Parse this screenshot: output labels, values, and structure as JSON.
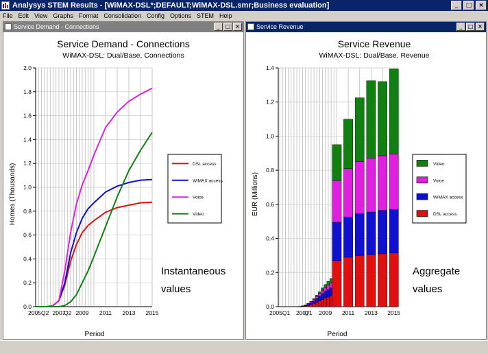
{
  "window": {
    "title": "Analysys STEM Results - [WiMAX-DSL*;DEFAULT;WiMAX-DSL.smr;Business evaluation]",
    "buttons": [
      "_",
      "□",
      "×"
    ]
  },
  "menu": [
    "File",
    "Edit",
    "View",
    "Graphs",
    "Format",
    "Consolidation",
    "Config",
    "Options",
    "STEM",
    "Help"
  ],
  "left_panel": {
    "window_title": "Service Demand - Connections",
    "annotation": [
      "Instantaneous",
      "values"
    ]
  },
  "right_panel": {
    "window_title": "Service Revenue",
    "annotation": [
      "Aggregate",
      "values"
    ]
  },
  "colors": {
    "active_title": "#0a246a",
    "inactive_title": "#808080",
    "dsl": "#e01010",
    "wimax": "#1010d0",
    "voice": "#e020e0",
    "video": "#108010"
  },
  "chart_data": [
    {
      "type": "line",
      "title": "Service Demand - Connections",
      "subtitle": "WiMAX-DSL:  Dual/Base, Connections",
      "xlabel": "Period",
      "ylabel": "Homes  (Thousands)",
      "xlim": [
        2005.0,
        2015.0
      ],
      "ylim": [
        0,
        2.0
      ],
      "yticks": [
        "0.0",
        "0.2",
        "0.4",
        "0.6",
        "0.8",
        "1.0",
        "1.2",
        "1.4",
        "1.6",
        "1.8",
        "2.0"
      ],
      "xticklabels": [
        {
          "label": "2005Q2",
          "x": 2005.25
        },
        {
          "label": "2007",
          "x": 2007.0
        },
        {
          "label": "Q2",
          "x": 2007.75
        },
        {
          "label": "2009",
          "x": 2009.0
        },
        {
          "label": "2011",
          "x": 2011.0
        },
        {
          "label": "2013",
          "x": 2013.0
        },
        {
          "label": "2015",
          "x": 2015.0
        }
      ],
      "grid": true,
      "legend_position": "right",
      "series": [
        {
          "name": "DSL access",
          "x": [
            2005.0,
            2006.0,
            2006.5,
            2007.0,
            2007.5,
            2008.0,
            2008.5,
            2009.0,
            2009.5,
            2010.0,
            2011.0,
            2012.0,
            2013.0,
            2014.0,
            2015.0
          ],
          "y": [
            0,
            0,
            0.01,
            0.05,
            0.18,
            0.38,
            0.52,
            0.62,
            0.68,
            0.72,
            0.79,
            0.83,
            0.85,
            0.87,
            0.875
          ]
        },
        {
          "name": "WiMAX access",
          "x": [
            2005.0,
            2006.0,
            2006.5,
            2007.0,
            2007.5,
            2008.0,
            2008.5,
            2009.0,
            2009.5,
            2010.0,
            2011.0,
            2012.0,
            2013.0,
            2014.0,
            2015.0
          ],
          "y": [
            0,
            0,
            0.01,
            0.05,
            0.2,
            0.45,
            0.62,
            0.74,
            0.82,
            0.87,
            0.96,
            1.01,
            1.04,
            1.06,
            1.065
          ]
        },
        {
          "name": "Voice",
          "x": [
            2005.0,
            2006.0,
            2006.5,
            2007.0,
            2007.5,
            2008.0,
            2008.5,
            2009.0,
            2009.5,
            2010.0,
            2011.0,
            2012.0,
            2013.0,
            2014.0,
            2015.0
          ],
          "y": [
            0,
            0,
            0.01,
            0.05,
            0.3,
            0.62,
            0.86,
            1.02,
            1.14,
            1.27,
            1.5,
            1.63,
            1.72,
            1.78,
            1.83
          ]
        },
        {
          "name": "Video",
          "x": [
            2005.0,
            2006.0,
            2006.5,
            2007.0,
            2007.5,
            2008.0,
            2008.5,
            2009.0,
            2009.5,
            2010.0,
            2011.0,
            2012.0,
            2013.0,
            2014.0,
            2015.0
          ],
          "y": [
            0,
            0,
            0,
            0,
            0.01,
            0.04,
            0.1,
            0.2,
            0.3,
            0.42,
            0.67,
            0.92,
            1.14,
            1.31,
            1.46
          ]
        }
      ]
    },
    {
      "type": "bar",
      "stacked": true,
      "title": "Service Revenue",
      "subtitle": "WiMAX-DSL:  Dual/Base, Revenue",
      "xlabel": "Period",
      "ylabel": "EUR  (Millions)",
      "xlim": [
        2004.875,
        2015.375
      ],
      "ylim": [
        0,
        1.4
      ],
      "yticks": [
        "0.0",
        "0.2",
        "0.4",
        "0.6",
        "0.8",
        "1.0",
        "1.2",
        "1.4"
      ],
      "xticklabels": [
        {
          "label": "2005Q1",
          "x": 2005.0
        },
        {
          "label": "2007",
          "x": 2007.0
        },
        {
          "label": "Q1",
          "x": 2007.5
        },
        {
          "label": "2009",
          "x": 2009.0
        },
        {
          "label": "2011",
          "x": 2011.0
        },
        {
          "label": "2013",
          "x": 2013.0
        },
        {
          "label": "2015",
          "x": 2015.0
        }
      ],
      "grid": true,
      "legend_position": "right",
      "legend_order": [
        "Video",
        "Voice",
        "WiMAX access",
        "DSL access"
      ],
      "categories": [
        "2005Q1",
        "2005Q2",
        "2005Q3",
        "2005Q4",
        "2006Q1",
        "2006Q2",
        "2006Q3",
        "2006Q4",
        "2007Q1",
        "2007Q2",
        "2007Q3",
        "2007Q4",
        "2008Q1",
        "2008Q2",
        "2008Q3",
        "2008Q4",
        "2009Q1",
        "2009Q2",
        "2009Q3",
        "2009Q4",
        "2010",
        "2011",
        "2012",
        "2013",
        "2014",
        "2015"
      ],
      "x": [
        2005.0,
        2005.25,
        2005.5,
        2005.75,
        2006.0,
        2006.25,
        2006.5,
        2006.75,
        2007.0,
        2007.25,
        2007.5,
        2007.75,
        2008.0,
        2008.25,
        2008.5,
        2008.75,
        2009.0,
        2009.25,
        2009.5,
        2009.75,
        2010.0,
        2011.0,
        2012.0,
        2013.0,
        2014.0,
        2015.0
      ],
      "widths": [
        0.25,
        0.25,
        0.25,
        0.25,
        0.25,
        0.25,
        0.25,
        0.25,
        0.25,
        0.25,
        0.25,
        0.25,
        0.25,
        0.25,
        0.25,
        0.25,
        0.25,
        0.25,
        0.25,
        0.25,
        0.8,
        0.8,
        0.8,
        0.8,
        0.8,
        0.8
      ],
      "series": [
        {
          "name": "DSL access",
          "values": [
            0,
            0,
            0,
            0,
            0,
            0,
            0,
            0.001,
            0.002,
            0.004,
            0.007,
            0.012,
            0.018,
            0.026,
            0.034,
            0.042,
            0.05,
            0.056,
            0.062,
            0.068,
            0.27,
            0.29,
            0.3,
            0.305,
            0.31,
            0.315
          ]
        },
        {
          "name": "WiMAX access",
          "values": [
            0,
            0,
            0,
            0,
            0,
            0,
            0,
            0.001,
            0.002,
            0.004,
            0.007,
            0.011,
            0.016,
            0.022,
            0.028,
            0.034,
            0.039,
            0.044,
            0.048,
            0.052,
            0.225,
            0.235,
            0.245,
            0.25,
            0.255,
            0.255
          ]
        },
        {
          "name": "Voice",
          "values": [
            0,
            0,
            0,
            0,
            0,
            0,
            0,
            0,
            0.001,
            0.002,
            0.004,
            0.006,
            0.009,
            0.012,
            0.016,
            0.02,
            0.023,
            0.026,
            0.029,
            0.032,
            0.245,
            0.285,
            0.305,
            0.315,
            0.32,
            0.325
          ]
        },
        {
          "name": "Video",
          "values": [
            0,
            0,
            0,
            0,
            0,
            0,
            0,
            0,
            0,
            0,
            0.001,
            0.002,
            0.004,
            0.007,
            0.01,
            0.014,
            0.018,
            0.022,
            0.026,
            0.03,
            0.21,
            0.29,
            0.375,
            0.455,
            0.435,
            0.5
          ]
        }
      ]
    }
  ]
}
